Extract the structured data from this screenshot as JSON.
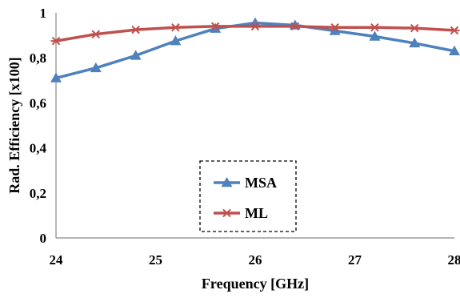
{
  "chart_data": {
    "type": "line",
    "xlabel": "Frequency [GHz]",
    "ylabel": "Rad. Efficiency [x100]",
    "xlim": [
      24,
      28
    ],
    "ylim": [
      0,
      1
    ],
    "x_ticks": [
      "24",
      "25",
      "26",
      "27",
      "28"
    ],
    "y_ticks": [
      "0",
      "0,2",
      "0,4",
      "0,6",
      "0,8",
      "1"
    ],
    "grid": false,
    "legend_position": "bottom-center",
    "series": [
      {
        "name": "MSA",
        "color": "#4f81bd",
        "marker": "triangle",
        "x": [
          24.0,
          24.4,
          24.8,
          25.2,
          25.6,
          26.0,
          26.4,
          26.8,
          27.2,
          27.6,
          28.0
        ],
        "y": [
          0.71,
          0.755,
          0.81,
          0.875,
          0.93,
          0.955,
          0.945,
          0.92,
          0.895,
          0.865,
          0.83
        ]
      },
      {
        "name": "ML",
        "color": "#c0504d",
        "marker": "asterisk",
        "x": [
          24.0,
          24.4,
          24.8,
          25.2,
          25.6,
          26.0,
          26.4,
          26.8,
          27.2,
          27.6,
          28.0
        ],
        "y": [
          0.875,
          0.905,
          0.925,
          0.935,
          0.94,
          0.94,
          0.94,
          0.935,
          0.935,
          0.932,
          0.922
        ]
      }
    ]
  }
}
